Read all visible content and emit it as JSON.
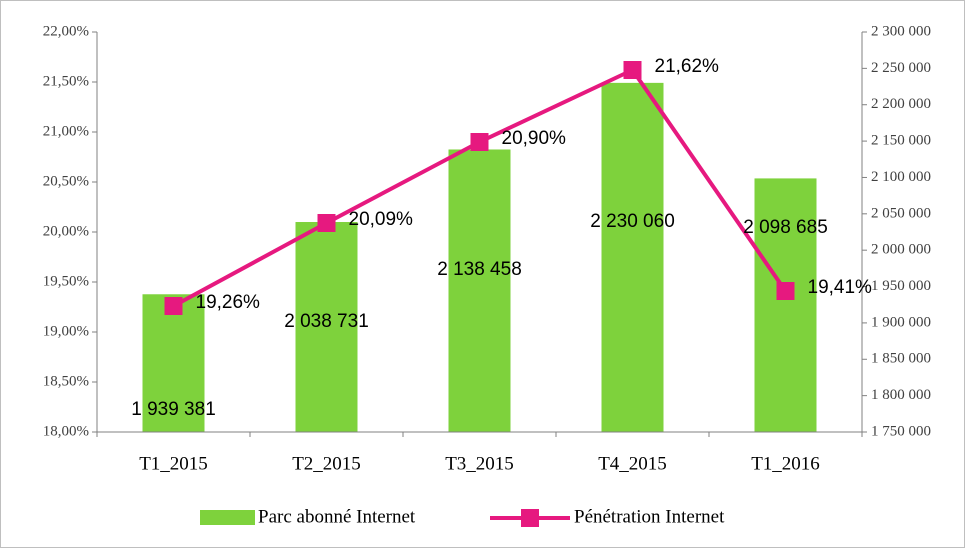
{
  "chart_data": {
    "type": "bar_line",
    "categories": [
      "T1_2015",
      "T2_2015",
      "T3_2015",
      "T4_2015",
      "T1_2016"
    ],
    "series": [
      {
        "name": "Parc abonné Internet",
        "color": "#7ed23c",
        "type": "bar",
        "axis": "y2",
        "values": [
          1939381,
          2038731,
          2138458,
          2230060,
          2098685
        ],
        "value_labels": [
          "1 939 381",
          "2 038 731",
          "2 138 458",
          "2 230 060",
          "2 098 685"
        ]
      },
      {
        "name": "Pénétration Internet",
        "color": "#e6197f",
        "type": "line",
        "axis": "y",
        "values": [
          19.26,
          20.09,
          20.9,
          21.62,
          19.41
        ],
        "value_labels": [
          "19,26%",
          "20,09%",
          "20,90%",
          "21,62%",
          "19,41%"
        ]
      }
    ],
    "ylim": [
      18,
      22
    ],
    "yticks": [
      {
        "value": 18,
        "label": "18,00%"
      },
      {
        "value": 18.5,
        "label": "18,50%"
      },
      {
        "value": 19,
        "label": "19,00%"
      },
      {
        "value": 19.5,
        "label": "19,50%"
      },
      {
        "value": 20,
        "label": "20,00%"
      },
      {
        "value": 20.5,
        "label": "20,50%"
      },
      {
        "value": 21,
        "label": "21,00%"
      },
      {
        "value": 21.5,
        "label": "21,50%"
      },
      {
        "value": 22,
        "label": "22,00%"
      }
    ],
    "y2lim": [
      1750000,
      2300000
    ],
    "y2ticks": [
      {
        "value": 1750000,
        "label": "1 750 000"
      },
      {
        "value": 1800000,
        "label": "1 800 000"
      },
      {
        "value": 1850000,
        "label": "1 850 000"
      },
      {
        "value": 1900000,
        "label": "1 900 000"
      },
      {
        "value": 1950000,
        "label": "1 950 000"
      },
      {
        "value": 2000000,
        "label": "2 000 000"
      },
      {
        "value": 2050000,
        "label": "2 050 000"
      },
      {
        "value": 2100000,
        "label": "2 100 000"
      },
      {
        "value": 2150000,
        "label": "2 150 000"
      },
      {
        "value": 2200000,
        "label": "2 200 000"
      },
      {
        "value": 2250000,
        "label": "2 250 000"
      },
      {
        "value": 2300000,
        "label": "2 300 000"
      }
    ],
    "legend": "bottom"
  }
}
